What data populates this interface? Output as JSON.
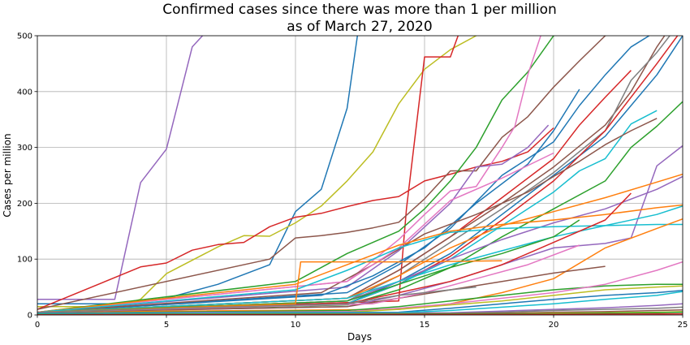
{
  "chart_data": {
    "type": "line",
    "title": "Confirmed cases since there was more than 1 per million",
    "subtitle": "as of March 27, 2020",
    "xlabel": "Days",
    "ylabel": "Cases per million",
    "xlim": [
      0,
      25
    ],
    "ylim": [
      0,
      500
    ],
    "xticks": [
      "0",
      "5",
      "10",
      "15",
      "20",
      "25"
    ],
    "yticks": [
      "0",
      "100",
      "200",
      "300",
      "400",
      "500"
    ],
    "grid": true,
    "legend": "none",
    "palette": [
      "#1f77b4",
      "#ff7f0e",
      "#2ca02c",
      "#d62728",
      "#9467bd",
      "#8c564b",
      "#e377c2",
      "#7f7f7f",
      "#bcbd22",
      "#17becf"
    ],
    "series": [
      {
        "color": "#9467bd",
        "x": [
          0,
          3,
          4,
          5,
          6,
          6.4
        ],
        "y": [
          28,
          28,
          237,
          297,
          480,
          500
        ]
      },
      {
        "color": "#1f77b4",
        "x": [
          0,
          3,
          5,
          7,
          9,
          10,
          11,
          12,
          12.4
        ],
        "y": [
          20,
          20,
          30,
          55,
          90,
          185,
          225,
          370,
          500
        ]
      },
      {
        "color": "#bcbd22",
        "x": [
          0,
          3,
          4,
          5,
          7,
          8,
          9,
          10,
          11,
          12,
          13,
          14,
          15,
          16,
          17
        ],
        "y": [
          15,
          15,
          28,
          74,
          122,
          142,
          141,
          165,
          195,
          240,
          292,
          378,
          440,
          475,
          500
        ]
      },
      {
        "color": "#d62728",
        "x": [
          0,
          4,
          5,
          6,
          7,
          8,
          9,
          10,
          11,
          12,
          13,
          14,
          15,
          16,
          17,
          18,
          19,
          20
        ],
        "y": [
          10,
          86,
          93,
          116,
          126,
          130,
          158,
          175,
          182,
          194,
          205,
          212,
          240,
          252,
          265,
          275,
          292,
          335
        ]
      },
      {
        "color": "#d62728",
        "x": [
          0,
          14,
          14.3,
          15,
          16,
          16.3,
          17,
          18,
          19,
          20,
          21,
          22,
          23,
          24,
          25
        ],
        "y": [
          5,
          25,
          190,
          462,
          462,
          500,
          520,
          520,
          520,
          520,
          520,
          520,
          520,
          520,
          520
        ]
      },
      {
        "color": "#8c564b",
        "x": [
          0,
          9,
          10,
          11,
          12,
          13,
          14,
          15,
          16,
          17,
          18,
          19,
          20,
          21,
          22,
          23,
          24,
          25
        ],
        "y": [
          10,
          100,
          138,
          142,
          148,
          156,
          166,
          208,
          258,
          258,
          318,
          355,
          408,
          455,
          500,
          520,
          520,
          520
        ]
      },
      {
        "color": "#2ca02c",
        "x": [
          0,
          10,
          12,
          14,
          15,
          16,
          17,
          18,
          19,
          20,
          21,
          22,
          23,
          24,
          25
        ],
        "y": [
          5,
          60,
          110,
          150,
          190,
          240,
          300,
          385,
          435,
          500,
          520,
          520,
          520,
          520,
          520
        ]
      },
      {
        "color": "#e377c2",
        "x": [
          0,
          12,
          14,
          15,
          16,
          17,
          18,
          18.5,
          19,
          19.5
        ],
        "y": [
          5,
          60,
          135,
          180,
          222,
          230,
          300,
          338,
          430,
          500
        ]
      },
      {
        "color": "#9467bd",
        "x": [
          0,
          12,
          14,
          16,
          17,
          18,
          19,
          19.8
        ],
        "y": [
          5,
          50,
          115,
          200,
          265,
          270,
          300,
          340
        ]
      },
      {
        "color": "#1f77b4",
        "x": [
          0,
          11,
          13,
          15,
          17,
          19,
          20,
          21
        ],
        "y": [
          5,
          35,
          70,
          120,
          200,
          270,
          330,
          404
        ]
      },
      {
        "color": "#1f77b4",
        "x": [
          0,
          12,
          14,
          16,
          18,
          20,
          21,
          22,
          23,
          23.7
        ],
        "y": [
          5,
          40,
          90,
          155,
          250,
          310,
          375,
          430,
          480,
          500
        ]
      },
      {
        "color": "#d62728",
        "x": [
          0,
          12,
          14,
          16,
          18,
          20,
          21,
          22,
          23
        ],
        "y": [
          5,
          30,
          80,
          140,
          210,
          280,
          340,
          390,
          438
        ]
      },
      {
        "color": "#8c564b",
        "x": [
          0,
          12,
          14,
          16,
          18,
          20,
          22,
          23,
          24,
          24.3
        ],
        "y": [
          5,
          30,
          80,
          140,
          200,
          265,
          340,
          400,
          480,
          500
        ]
      },
      {
        "color": "#7f7f7f",
        "x": [
          0,
          12,
          14,
          16,
          18,
          20,
          22,
          23,
          24,
          24.5
        ],
        "y": [
          5,
          25,
          70,
          130,
          190,
          255,
          330,
          420,
          470,
          500
        ]
      },
      {
        "color": "#1f77b4",
        "x": [
          0,
          12,
          14,
          16,
          18,
          20,
          22,
          24,
          25
        ],
        "y": [
          5,
          20,
          60,
          110,
          180,
          250,
          320,
          430,
          500
        ]
      },
      {
        "color": "#d62728",
        "x": [
          0,
          12,
          14,
          16,
          18,
          20,
          22,
          24,
          24.8
        ],
        "y": [
          5,
          20,
          55,
          105,
          170,
          240,
          330,
          450,
          500
        ]
      },
      {
        "color": "#17becf",
        "x": [
          0,
          12,
          14,
          16,
          18,
          20,
          21,
          22,
          23,
          24
        ],
        "y": [
          5,
          20,
          55,
          100,
          160,
          220,
          258,
          280,
          342,
          366
        ]
      },
      {
        "color": "#2ca02c",
        "x": [
          0,
          12,
          14,
          16,
          18,
          20,
          22,
          23,
          24,
          25
        ],
        "y": [
          5,
          18,
          45,
          85,
          140,
          190,
          240,
          300,
          338,
          382
        ]
      },
      {
        "color": "#8c564b",
        "x": [
          0,
          11,
          13,
          15,
          17,
          19,
          20,
          21,
          22,
          23,
          24
        ],
        "y": [
          5,
          40,
          90,
          145,
          180,
          220,
          248,
          275,
          305,
          330,
          352
        ]
      },
      {
        "color": "#9467bd",
        "x": [
          0,
          12,
          14,
          16,
          18,
          20,
          22,
          23,
          24,
          25
        ],
        "y": [
          5,
          15,
          35,
          60,
          90,
          120,
          128,
          138,
          267,
          303
        ]
      },
      {
        "color": "#ff7f0e",
        "x": [
          0,
          12,
          14,
          16,
          18,
          20,
          22,
          24,
          25
        ],
        "y": [
          5,
          30,
          70,
          120,
          160,
          185,
          210,
          238,
          252
        ]
      },
      {
        "color": "#9467bd",
        "x": [
          0,
          12,
          14,
          16,
          18,
          20,
          22,
          24,
          25
        ],
        "y": [
          5,
          25,
          60,
          100,
          135,
          165,
          190,
          225,
          248
        ]
      },
      {
        "color": "#e377c2",
        "x": [
          0,
          12,
          14,
          16,
          18,
          20
        ],
        "y": [
          5,
          60,
          120,
          205,
          245,
          290
        ]
      },
      {
        "color": "#ff7f0e",
        "x": [
          0,
          10,
          12,
          14,
          16,
          18,
          20,
          22,
          24,
          25
        ],
        "y": [
          5,
          55,
          90,
          125,
          150,
          162,
          170,
          180,
          192,
          197
        ]
      },
      {
        "color": "#17becf",
        "x": [
          0,
          10,
          12,
          14,
          16,
          18,
          20,
          22,
          24,
          25
        ],
        "y": [
          5,
          45,
          80,
          120,
          148,
          155,
          158,
          160,
          162,
          162
        ]
      },
      {
        "color": "#17becf",
        "x": [
          0,
          12,
          14,
          16,
          18,
          20,
          22,
          24,
          25
        ],
        "y": [
          5,
          30,
          60,
          90,
          115,
          140,
          160,
          180,
          195
        ]
      },
      {
        "color": "#ff7f0e",
        "x": [
          0,
          14,
          16,
          18,
          20,
          22,
          24,
          25
        ],
        "y": [
          5,
          10,
          20,
          40,
          65,
          120,
          155,
          172
        ]
      },
      {
        "color": "#2ca02c",
        "x": [
          0,
          12,
          14,
          16,
          18,
          20,
          21
        ],
        "y": [
          5,
          25,
          55,
          85,
          110,
          140,
          170
        ]
      },
      {
        "color": "#d62728",
        "x": [
          0,
          12,
          14,
          16,
          18,
          20,
          22,
          23
        ],
        "y": [
          5,
          20,
          40,
          60,
          90,
          130,
          170,
          218
        ]
      },
      {
        "color": "#8c564b",
        "x": [
          0,
          12,
          14,
          16,
          18,
          20,
          22
        ],
        "y": [
          5,
          15,
          30,
          45,
          60,
          75,
          87
        ]
      },
      {
        "color": "#e377c2",
        "x": [
          0,
          13,
          15,
          17,
          19,
          21
        ],
        "y": [
          5,
          20,
          40,
          65,
          90,
          125
        ]
      },
      {
        "color": "#ff7f0e",
        "x": [
          0,
          10,
          10.2,
          11,
          12,
          14,
          16,
          18
        ],
        "y": [
          5,
          20,
          95,
          95,
          95,
          95,
          96,
          97
        ]
      },
      {
        "color": "#7f7f7f",
        "x": [
          0,
          12,
          14,
          16,
          17
        ],
        "y": [
          5,
          20,
          35,
          45,
          50
        ]
      },
      {
        "color": "#2ca02c",
        "x": [
          0,
          12,
          14,
          16,
          18,
          20,
          22,
          24,
          25
        ],
        "y": [
          3,
          8,
          15,
          25,
          35,
          45,
          52,
          55,
          55
        ]
      },
      {
        "color": "#e377c2",
        "x": [
          0,
          12,
          14,
          16,
          18,
          20,
          22,
          24,
          25
        ],
        "y": [
          3,
          6,
          12,
          20,
          30,
          40,
          55,
          80,
          95
        ]
      },
      {
        "color": "#bcbd22",
        "x": [
          0,
          12,
          14,
          16,
          18,
          20,
          22,
          24,
          25
        ],
        "y": [
          3,
          5,
          10,
          18,
          25,
          35,
          45,
          50,
          52
        ]
      },
      {
        "color": "#1f77b4",
        "x": [
          0,
          14,
          16,
          18,
          20,
          22,
          24,
          25
        ],
        "y": [
          3,
          5,
          12,
          20,
          28,
          35,
          40,
          44
        ]
      },
      {
        "color": "#9467bd",
        "x": [
          0,
          16,
          18,
          20,
          22,
          24,
          25
        ],
        "y": [
          2,
          4,
          7,
          10,
          13,
          17,
          20
        ]
      },
      {
        "color": "#17becf",
        "x": [
          0,
          14,
          16,
          18,
          20,
          22,
          24,
          25
        ],
        "y": [
          2,
          4,
          8,
          14,
          20,
          28,
          35,
          42
        ]
      },
      {
        "color": "#7f7f7f",
        "x": [
          0,
          16,
          18,
          20,
          22,
          24,
          25
        ],
        "y": [
          1,
          3,
          5,
          8,
          10,
          12,
          14
        ]
      },
      {
        "color": "#8c564b",
        "x": [
          0,
          16,
          18,
          20,
          22,
          24,
          25
        ],
        "y": [
          1,
          2,
          3,
          5,
          6,
          8,
          9
        ]
      },
      {
        "color": "#bcbd22",
        "x": [
          0,
          18,
          20,
          22,
          24,
          25
        ],
        "y": [
          1,
          2,
          3,
          4,
          5,
          6
        ]
      },
      {
        "color": "#2ca02c",
        "x": [
          0,
          20,
          22,
          24,
          25
        ],
        "y": [
          1,
          2,
          3,
          4,
          5
        ]
      },
      {
        "color": "#d62728",
        "x": [
          0,
          20,
          25
        ],
        "y": [
          0.5,
          1,
          2
        ]
      }
    ]
  }
}
